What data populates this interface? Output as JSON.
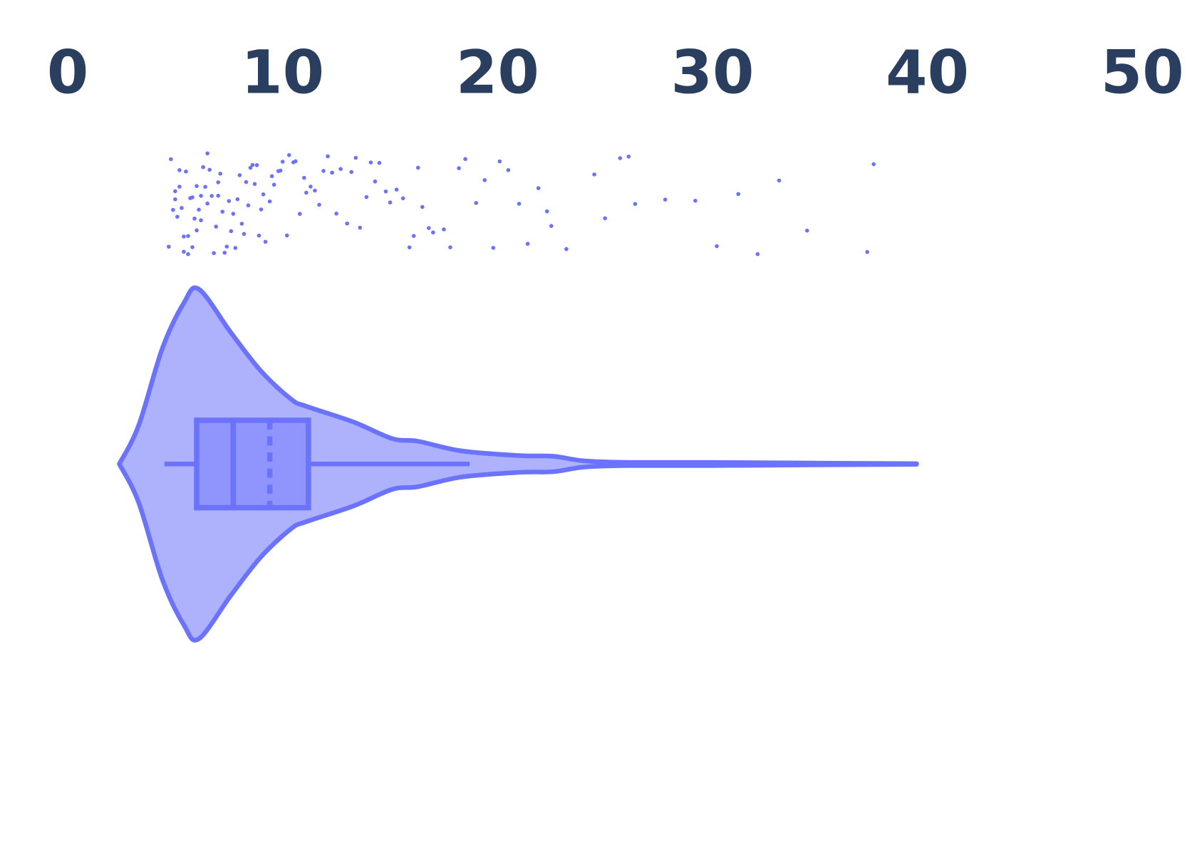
{
  "chart_data": {
    "type": "violin",
    "orientation": "horizontal",
    "color": "#6b72fb",
    "xlim": [
      0,
      50
    ],
    "xticks": [
      0,
      10,
      20,
      30,
      40,
      50
    ],
    "box": {
      "lowerfence": 4.5,
      "q1": 6.0,
      "median": 7.7,
      "mean": 9.4,
      "q3": 11.2,
      "upperfence": 18.7
    },
    "violin": {
      "x": [
        2.4,
        3.3,
        4.4,
        5.4,
        6.1,
        7.6,
        9.0,
        10.4,
        11.1,
        13.3,
        15.1,
        16.3,
        18.3,
        21.0,
        22.6,
        24.0,
        26.0,
        30.0,
        35.0,
        39.5
      ],
      "density": [
        0.0,
        0.22,
        0.66,
        0.92,
        1.0,
        0.75,
        0.53,
        0.37,
        0.33,
        0.24,
        0.145,
        0.13,
        0.075,
        0.048,
        0.044,
        0.018,
        0.009,
        0.009,
        0.005,
        0.002
      ]
    },
    "points": [
      4.7,
      4.8,
      4.9,
      5.0,
      5.0,
      5.1,
      5.2,
      5.2,
      5.3,
      5.4,
      5.4,
      5.5,
      5.6,
      5.6,
      5.7,
      5.8,
      5.8,
      5.9,
      6.0,
      6.0,
      6.1,
      6.2,
      6.2,
      6.3,
      6.4,
      6.5,
      6.5,
      6.6,
      6.7,
      6.8,
      6.9,
      7.0,
      7.0,
      7.1,
      7.2,
      7.3,
      7.4,
      7.5,
      7.6,
      7.7,
      7.8,
      7.9,
      8.0,
      8.1,
      8.2,
      8.3,
      8.4,
      8.5,
      8.6,
      8.7,
      8.8,
      8.9,
      9.0,
      9.1,
      9.2,
      9.4,
      9.5,
      9.6,
      9.8,
      9.9,
      10.0,
      10.2,
      10.3,
      10.5,
      10.6,
      10.8,
      11.0,
      11.1,
      11.3,
      11.5,
      11.7,
      11.9,
      12.1,
      12.3,
      12.5,
      12.7,
      13.0,
      13.2,
      13.4,
      13.6,
      13.9,
      14.1,
      14.3,
      14.5,
      14.8,
      15.0,
      15.3,
      15.6,
      15.9,
      16.1,
      16.3,
      16.5,
      16.8,
      17.0,
      17.5,
      17.8,
      18.2,
      18.5,
      19.0,
      19.4,
      19.8,
      20.1,
      20.5,
      21.0,
      21.4,
      21.9,
      22.3,
      22.5,
      23.2,
      24.5,
      25.0,
      25.7,
      26.1,
      26.4,
      27.8,
      29.2,
      30.2,
      31.2,
      32.1,
      33.1,
      34.4,
      37.2,
      37.5
    ]
  }
}
